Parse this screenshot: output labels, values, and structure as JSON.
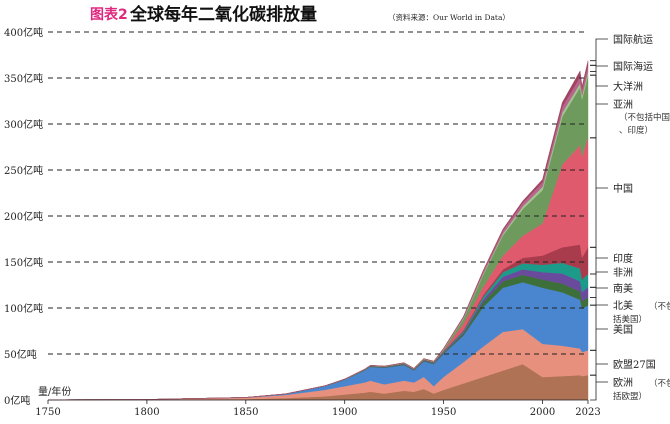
{
  "header": {
    "figure_label": "图表2",
    "title": "全球每年二氧化碳排放量",
    "source": "（资料来源：Our World in Data）",
    "label_color": "#e0287e"
  },
  "axis": {
    "y_unit_label": "量/年份",
    "y_tick_labels": [
      "0亿吨",
      "50亿吨",
      "100亿吨",
      "150亿吨",
      "200亿吨",
      "250亿吨",
      "300亿吨",
      "350亿吨",
      "400亿吨"
    ],
    "x_tick_labels": [
      "1750",
      "1800",
      "1850",
      "1900",
      "1950",
      "2000",
      "2023"
    ]
  },
  "legend": [
    {
      "key": "aviation",
      "label": "国际航运",
      "note": ""
    },
    {
      "key": "shipping",
      "label": "国际海运",
      "note": ""
    },
    {
      "key": "oceania",
      "label": "大洋洲",
      "note": ""
    },
    {
      "key": "asia_other",
      "label": "亚洲",
      "note": "（不包括中国、印度）"
    },
    {
      "key": "china",
      "label": "中国",
      "note": ""
    },
    {
      "key": "india",
      "label": "印度",
      "note": ""
    },
    {
      "key": "africa",
      "label": "非洲",
      "note": ""
    },
    {
      "key": "south_america",
      "label": "南美",
      "note": ""
    },
    {
      "key": "na_other",
      "label": "北美",
      "note": "（不包括美国）"
    },
    {
      "key": "usa",
      "label": "美国",
      "note": ""
    },
    {
      "key": "eu27",
      "label": "欧盟27国",
      "note": ""
    },
    {
      "key": "europe_other",
      "label": "欧洲",
      "note": "（不包括欧盟）"
    }
  ],
  "chart_data": {
    "type": "area",
    "stacked": true,
    "title": "全球每年二氧化碳排放量",
    "ylabel": "量/年份",
    "yunit": "亿吨",
    "ylim": [
      0,
      400
    ],
    "xlim": [
      1750,
      2023
    ],
    "grid": "horizontal dashed",
    "legend_placement": "right",
    "x": [
      1750,
      1800,
      1850,
      1870,
      1890,
      1900,
      1910,
      1913,
      1920,
      1930,
      1935,
      1940,
      1945,
      1950,
      1960,
      1970,
      1980,
      1990,
      2000,
      2010,
      2019,
      2020,
      2023
    ],
    "series": [
      {
        "key": "europe_other",
        "color": "#b07255",
        "values": [
          0.1,
          0.3,
          1.0,
          2.0,
          4.0,
          6.0,
          8.0,
          9.0,
          7.0,
          10.0,
          9.0,
          12.0,
          7.0,
          11.0,
          18.0,
          25.0,
          32.0,
          39.0,
          25.0,
          26.0,
          27.0,
          26.0,
          27.0
        ]
      },
      {
        "key": "eu27",
        "color": "#e8907e",
        "values": [
          0.1,
          0.3,
          1.5,
          3.5,
          7.0,
          9.0,
          11.0,
          12.0,
          10.0,
          11.0,
          10.0,
          13.0,
          8.0,
          14.0,
          23.0,
          33.0,
          42.0,
          38.0,
          36.0,
          33.0,
          29.0,
          26.0,
          27.0
        ]
      },
      {
        "key": "usa",
        "color": "#4a86cf",
        "values": [
          0.0,
          0.0,
          0.3,
          1.0,
          4.0,
          7.0,
          13.0,
          15.0,
          18.0,
          17.0,
          13.0,
          17.0,
          24.0,
          25.0,
          29.0,
          43.0,
          48.0,
          51.0,
          61.0,
          58.0,
          53.0,
          47.0,
          49.0
        ]
      },
      {
        "key": "na_other",
        "color": "#3d6f3a",
        "values": [
          0.0,
          0.0,
          0.0,
          0.1,
          0.2,
          0.3,
          0.5,
          0.5,
          0.5,
          0.6,
          0.5,
          0.6,
          0.8,
          1.0,
          2.0,
          5.0,
          7.0,
          8.0,
          9.0,
          9.5,
          9.0,
          8.5,
          8.5
        ]
      },
      {
        "key": "south_america",
        "color": "#6a4a9c",
        "values": [
          0.0,
          0.0,
          0.0,
          0.0,
          0.1,
          0.1,
          0.2,
          0.3,
          0.3,
          0.4,
          0.4,
          0.5,
          0.5,
          1.0,
          1.5,
          3.0,
          5.0,
          6.0,
          8.0,
          11.0,
          11.0,
          10.0,
          11.0
        ]
      },
      {
        "key": "africa",
        "color": "#1c9a8a",
        "values": [
          0.0,
          0.0,
          0.0,
          0.0,
          0.0,
          0.1,
          0.1,
          0.2,
          0.2,
          0.3,
          0.3,
          0.4,
          0.4,
          0.8,
          1.2,
          3.0,
          5.0,
          6.5,
          8.0,
          11.5,
          14.0,
          13.5,
          14.5
        ]
      },
      {
        "key": "india",
        "color": "#a83c4c",
        "values": [
          0.0,
          0.0,
          0.0,
          0.0,
          0.0,
          0.0,
          0.1,
          0.2,
          0.2,
          0.3,
          0.3,
          0.4,
          0.4,
          0.5,
          1.2,
          2.0,
          3.0,
          6.0,
          10.0,
          17.0,
          26.0,
          24.0,
          29.0
        ]
      },
      {
        "key": "china",
        "color": "#df5a6c",
        "values": [
          0.0,
          0.0,
          0.0,
          0.0,
          0.0,
          0.0,
          0.0,
          0.0,
          0.0,
          0.2,
          0.2,
          0.2,
          0.2,
          0.8,
          7.0,
          9.0,
          15.0,
          24.0,
          35.0,
          90.0,
          108.0,
          110.0,
          119.0
        ]
      },
      {
        "key": "asia_other",
        "color": "#6f9a5d",
        "values": [
          0.0,
          0.0,
          0.0,
          0.0,
          0.1,
          0.2,
          0.3,
          0.3,
          0.4,
          0.5,
          0.5,
          0.6,
          0.5,
          1.0,
          5.0,
          13.0,
          22.0,
          29.0,
          36.0,
          52.0,
          63.0,
          62.0,
          68.0
        ]
      },
      {
        "key": "oceania",
        "color": "#a3c48f",
        "values": [
          0.0,
          0.0,
          0.0,
          0.0,
          0.1,
          0.1,
          0.2,
          0.2,
          0.2,
          0.2,
          0.2,
          0.3,
          0.3,
          0.4,
          0.8,
          1.3,
          1.8,
          2.8,
          3.7,
          4.4,
          4.2,
          4.1,
          4.0
        ]
      },
      {
        "key": "shipping",
        "color": "#b6658e",
        "values": [
          0.0,
          0.0,
          0.0,
          0.0,
          0.0,
          0.0,
          0.0,
          0.0,
          0.0,
          0.0,
          0.0,
          0.0,
          0.0,
          0.6,
          1.5,
          2.5,
          3.5,
          4.0,
          5.0,
          6.5,
          7.0,
          6.5,
          6.8
        ]
      },
      {
        "key": "aviation",
        "color": "#a0445e",
        "values": [
          0.0,
          0.0,
          0.0,
          0.0,
          0.0,
          0.0,
          0.0,
          0.0,
          0.0,
          0.0,
          0.0,
          0.0,
          0.0,
          0.2,
          0.5,
          1.0,
          1.5,
          2.0,
          3.0,
          4.5,
          6.5,
          3.5,
          5.0
        ]
      }
    ]
  }
}
